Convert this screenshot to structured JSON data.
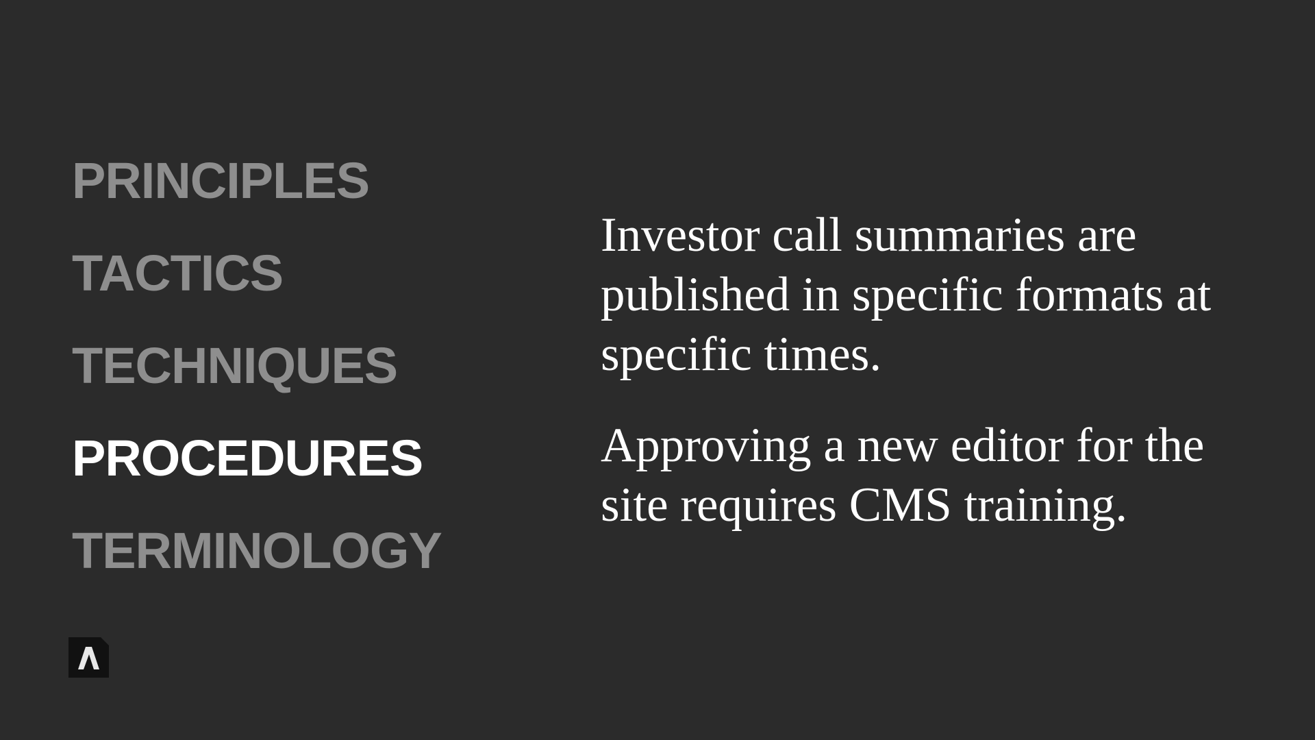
{
  "nav": {
    "items": [
      {
        "label": "PRINCIPLES",
        "active": false
      },
      {
        "label": "TACTICS",
        "active": false
      },
      {
        "label": "TECHNIQUES",
        "active": false
      },
      {
        "label": "PROCEDURES",
        "active": true
      },
      {
        "label": "TERMINOLOGY",
        "active": false
      }
    ]
  },
  "content": {
    "paragraphs": [
      "Investor call summaries are published in specific formats at specific times.",
      "Approving a new editor for the site requires CMS training."
    ]
  },
  "logo": {
    "icon": "brand-logo-icon"
  },
  "colors": {
    "background": "#2b2b2b",
    "inactive": "#8e8e8e",
    "active": "#ffffff",
    "logo_bg": "#111111"
  }
}
